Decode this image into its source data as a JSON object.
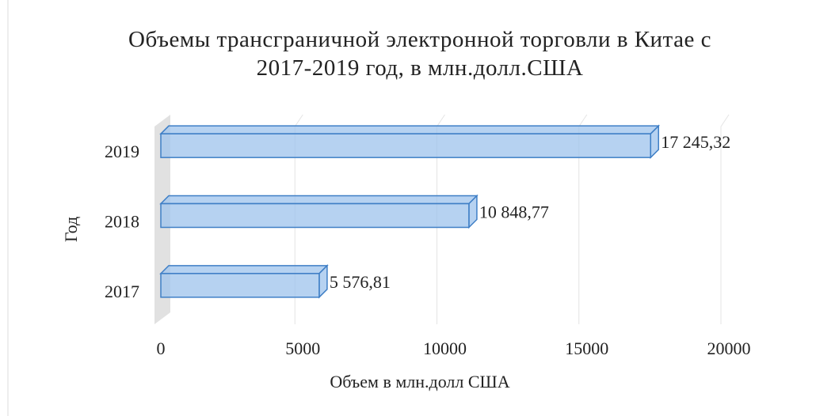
{
  "chart_data": {
    "type": "bar",
    "orientation": "horizontal",
    "title": "Объемы трансграничной электронной торговли в Китае с 2017-2019 год, в млн.долл.США",
    "x_label": "Объем в млн.долл США",
    "y_label": "Год",
    "categories": [
      "2017",
      "2018",
      "2019"
    ],
    "values": [
      5576.81,
      10848.77,
      17245.32
    ],
    "value_labels": [
      "5 576,81",
      "10 848,77",
      "17 245,32"
    ],
    "color": "#9dc3ec",
    "xlim": [
      0,
      20000
    ],
    "xticks": [
      0,
      5000,
      10000,
      15000,
      20000
    ],
    "grid": true
  }
}
